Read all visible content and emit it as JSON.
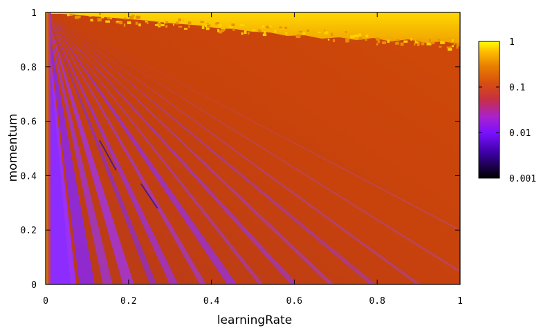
{
  "chart_data": {
    "type": "heatmap",
    "title": "",
    "xlabel": "learningRate",
    "ylabel": "momentum",
    "xlim": [
      0,
      1
    ],
    "ylim": [
      0,
      1
    ],
    "x_ticks": [
      0,
      0.2,
      0.4,
      0.6,
      0.8,
      1
    ],
    "x_tick_labels": [
      "0",
      "0.2",
      "0.4",
      "0.6",
      "0.8",
      "1"
    ],
    "y_ticks": [
      0,
      0.2,
      0.4,
      0.6,
      0.8,
      1
    ],
    "y_tick_labels": [
      "0",
      "0.2",
      "0.4",
      "0.6",
      "0.8",
      "1"
    ],
    "grid": false,
    "colorbar": {
      "scale": "log",
      "range": [
        0.001,
        1
      ],
      "ticks": [
        0.001,
        0.01,
        0.1,
        1
      ],
      "tick_labels": [
        "0.001",
        "0.01",
        "0.1",
        "1"
      ],
      "placement": "right",
      "colors": [
        "#000000",
        "#5500c8",
        "#9933ff",
        "#cc2277",
        "#d84a10",
        "#e88000",
        "#ffc000",
        "#ffff00"
      ]
    },
    "regions": [
      {
        "description": "low error rays fanning from origin",
        "color": "#8830ee"
      },
      {
        "description": "mid error background",
        "color": "#c84010"
      },
      {
        "description": "high error band near momentum 1",
        "color": "#f5c800"
      }
    ]
  }
}
